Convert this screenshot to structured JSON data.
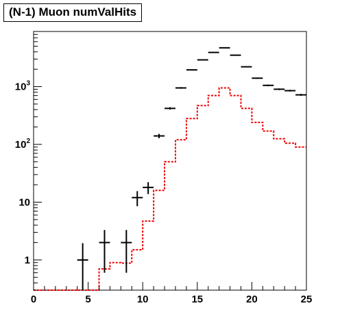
{
  "chart_data": {
    "type": "histogram",
    "title": "(N-1) Muon numValHits",
    "xlabel": "",
    "ylabel": "",
    "xlim": [
      0,
      25
    ],
    "ylim": [
      0.3,
      9000
    ],
    "y_scale": "log",
    "grid": false,
    "legend": "none",
    "x_ticks": [
      "0",
      "5",
      "10",
      "15",
      "20",
      "25"
    ],
    "y_ticks": [
      {
        "base": "1",
        "exp": ""
      },
      {
        "base": "10",
        "exp": ""
      },
      {
        "base": "10",
        "exp": "2"
      },
      {
        "base": "10",
        "exp": "3"
      }
    ],
    "bin_edges": [
      0,
      1,
      2,
      3,
      4,
      5,
      6,
      7,
      8,
      9,
      10,
      11,
      12,
      13,
      14,
      15,
      16,
      17,
      18,
      19,
      20,
      21,
      22,
      23,
      24,
      25
    ],
    "series": [
      {
        "style": "points-with-errors",
        "color": "#000000",
        "points": [
          {
            "x": 4.5,
            "y": 1,
            "err_low": 0.7,
            "err_high": 0.95
          },
          {
            "x": 6.5,
            "y": 2,
            "err_low": 1.4,
            "err_high": 1.3
          },
          {
            "x": 8.5,
            "y": 2,
            "err_low": 1.4,
            "err_high": 1.3
          },
          {
            "x": 9.5,
            "y": 12,
            "err_low": 3.5,
            "err_high": 3.5
          },
          {
            "x": 10.5,
            "y": 18,
            "err_low": 4.2,
            "err_high": 4.2
          },
          {
            "x": 11.5,
            "y": 140,
            "err_low": 12,
            "err_high": 12
          },
          {
            "x": 12.5,
            "y": 420,
            "err_low": 20,
            "err_high": 20
          },
          {
            "x": 13.5,
            "y": 950,
            "err_low": 31,
            "err_high": 31
          },
          {
            "x": 14.5,
            "y": 1950,
            "err_low": 44,
            "err_high": 44
          },
          {
            "x": 15.5,
            "y": 2900,
            "err_low": 54,
            "err_high": 54
          },
          {
            "x": 16.5,
            "y": 3900,
            "err_low": 62,
            "err_high": 62
          },
          {
            "x": 17.5,
            "y": 4700,
            "err_low": 69,
            "err_high": 69
          },
          {
            "x": 18.5,
            "y": 3500,
            "err_low": 59,
            "err_high": 59
          },
          {
            "x": 19.5,
            "y": 2200,
            "err_low": 47,
            "err_high": 47
          },
          {
            "x": 20.5,
            "y": 1400,
            "err_low": 37,
            "err_high": 37
          },
          {
            "x": 21.5,
            "y": 1050,
            "err_low": 32,
            "err_high": 32
          },
          {
            "x": 22.5,
            "y": 900,
            "err_low": 30,
            "err_high": 30
          },
          {
            "x": 23.5,
            "y": 850,
            "err_low": 29,
            "err_high": 29
          },
          {
            "x": 24.5,
            "y": 720,
            "err_low": 27,
            "err_high": 27
          }
        ]
      },
      {
        "style": "dashed-step",
        "color": "#ee0000",
        "values": [
          0.3,
          0.3,
          0.3,
          0.3,
          0.3,
          0.3,
          0.7,
          0.9,
          0.88,
          1.5,
          4.7,
          16,
          50,
          120,
          280,
          470,
          700,
          950,
          700,
          420,
          240,
          170,
          125,
          105,
          90
        ]
      }
    ]
  }
}
